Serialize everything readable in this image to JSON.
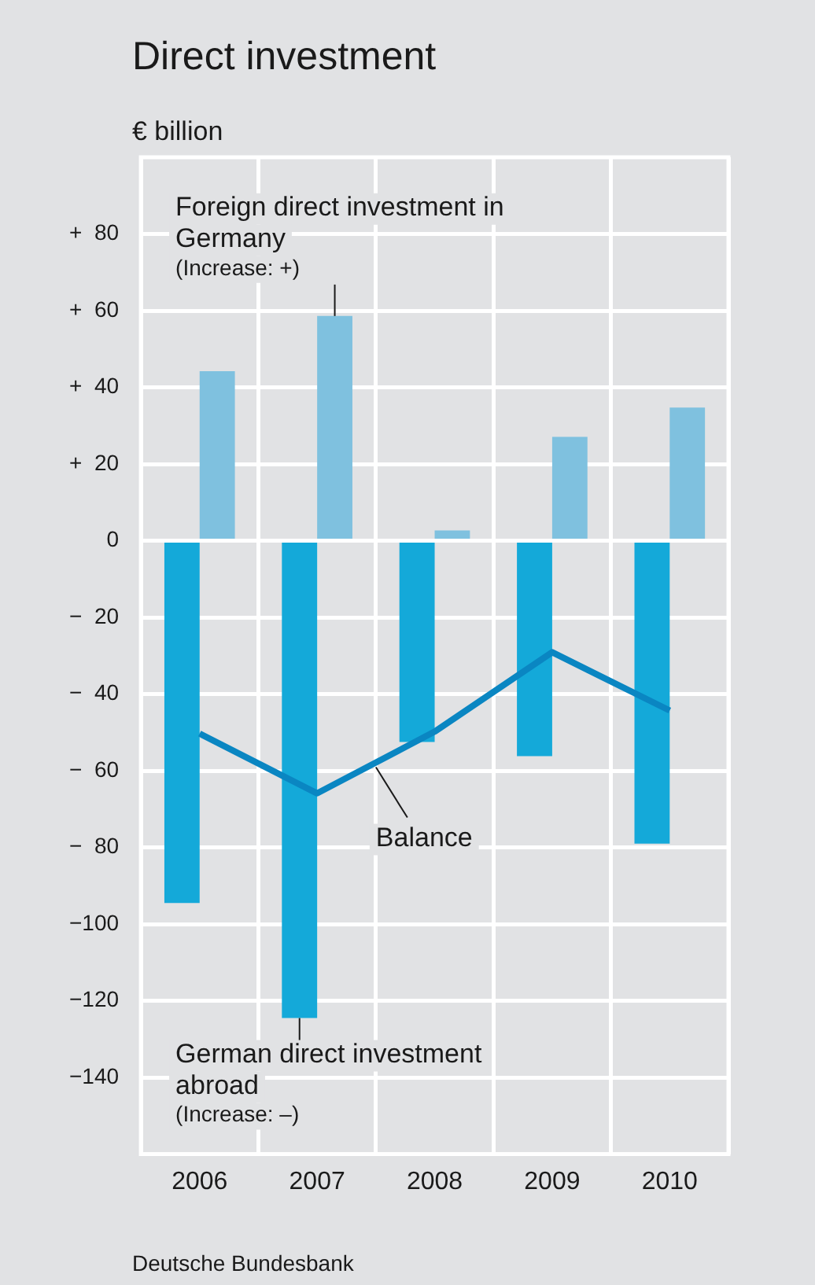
{
  "chart_data": {
    "type": "bar",
    "title": "Direct investment",
    "ylabel": "€ billion",
    "categories": [
      "2006",
      "2007",
      "2008",
      "2009",
      "2010"
    ],
    "series": [
      {
        "name": "German direct investment abroad",
        "color": "#14a9d9",
        "values": [
          -94.5,
          -124.5,
          -52.5,
          -56.2,
          -79
        ]
      },
      {
        "name": "Foreign direct investment in Germany",
        "color": "#7fc1df",
        "values": [
          44.2,
          58.6,
          2.7,
          27.1,
          34.7
        ]
      },
      {
        "name": "Balance",
        "type": "line",
        "color": "#0a86c2",
        "values": [
          -50.3,
          -65.9,
          -49.8,
          -29.1,
          -44.3
        ]
      }
    ],
    "annotations": [
      "(Increase: –)",
      "(Increase: +)",
      "Deutsche Bundesbank"
    ],
    "ylim": [
      -160,
      100
    ],
    "yticks": [
      {
        "value": 80,
        "label": "+  80"
      },
      {
        "value": 60,
        "label": "+  60"
      },
      {
        "value": 40,
        "label": "+  40"
      },
      {
        "value": 20,
        "label": "+  20"
      },
      0,
      {
        "value": -20,
        "label": "−  20"
      },
      {
        "value": -40,
        "label": "−  40"
      },
      {
        "value": -60,
        "label": "−  60"
      },
      {
        "value": -80,
        "label": "−  80"
      },
      {
        "value": -100,
        "label": "−100"
      },
      {
        "value": -120,
        "label": "−120"
      },
      {
        "value": -140,
        "label": "−140"
      }
    ],
    "grid": true,
    "legend": false
  }
}
